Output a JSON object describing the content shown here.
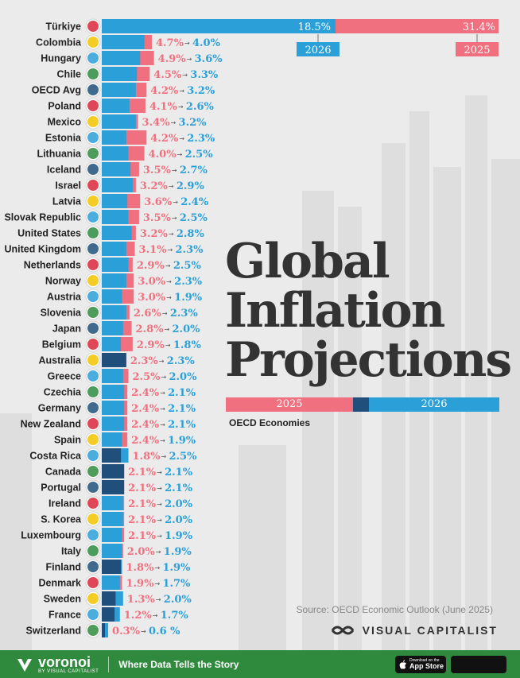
{
  "title_lines": [
    "Global",
    "Inflation",
    "Projections"
  ],
  "subtitle": "OECD Economies",
  "legend": {
    "y2025": "2025",
    "y2026": "2026"
  },
  "source": "Source: OECD Economic Outlook (June 2025)",
  "publisher": "VISUAL CAPITALIST",
  "footer": {
    "brand": "voronoi",
    "brand_sub": "BY VISUAL CAPITALIST",
    "tagline": "Where Data Tells the Story",
    "appstore_small": "Download on the",
    "appstore_big": "App Store"
  },
  "colors": {
    "y2025": "#f0707f",
    "y2026": "#2a9fd8",
    "overlap": "#1f4f7a"
  },
  "chart_data": {
    "type": "bar",
    "orientation": "horizontal",
    "series": [
      {
        "name": "2025",
        "values": [
          31.4,
          4.7,
          4.9,
          4.5,
          4.2,
          4.1,
          3.4,
          4.2,
          4.0,
          3.5,
          3.2,
          3.6,
          3.5,
          3.2,
          3.1,
          2.9,
          3.0,
          3.0,
          2.6,
          2.8,
          2.9,
          2.3,
          2.5,
          2.4,
          2.4,
          2.4,
          2.4,
          1.8,
          2.1,
          2.1,
          2.1,
          2.1,
          2.1,
          2.0,
          1.8,
          1.9,
          1.3,
          1.2,
          0.3
        ]
      },
      {
        "name": "2026",
        "values": [
          18.5,
          4.0,
          3.6,
          3.3,
          3.2,
          2.6,
          3.2,
          2.3,
          2.5,
          2.7,
          2.9,
          2.4,
          2.5,
          2.8,
          2.3,
          2.5,
          2.3,
          1.9,
          2.3,
          2.0,
          1.8,
          2.3,
          2.0,
          2.1,
          2.1,
          2.1,
          1.9,
          2.5,
          2.1,
          2.1,
          2.0,
          2.0,
          1.9,
          1.9,
          1.9,
          1.7,
          2.0,
          1.7,
          0.6
        ]
      }
    ],
    "categories": [
      "Türkiye",
      "Colombia",
      "Hungary",
      "Chile",
      "OECD Avg",
      "Poland",
      "Mexico",
      "Estonia",
      "Lithuania",
      "Iceland",
      "Israel",
      "Latvia",
      "Slovak Republic",
      "United States",
      "United Kingdom",
      "Netherlands",
      "Norway",
      "Austria",
      "Slovenia",
      "Japan",
      "Belgium",
      "Australia",
      "Greece",
      "Czechia",
      "Germany",
      "New Zealand",
      "Spain",
      "Costa Rica",
      "Canada",
      "Portugal",
      "Ireland",
      "S. Korea",
      "Luxembourg",
      "Italy",
      "Finland",
      "Denmark",
      "Sweden",
      "France",
      "Switzerland"
    ],
    "labels_2025": [
      "31.4%",
      "4.7%",
      "4.9%",
      "4.5%",
      "4.2%",
      "4.1%",
      "3.4%",
      "4.2%",
      "4.0%",
      "3.5%",
      "3.2%",
      "3.6%",
      "3.5%",
      "3.2%",
      "3.1%",
      "2.9%",
      "3.0%",
      "3.0%",
      "2.6%",
      "2.8%",
      "2.9%",
      "2.3%",
      "2.5%",
      "2.4%",
      "2.4%",
      "2.4%",
      "2.4%",
      "1.8%",
      "2.1%",
      "2.1%",
      "2.1%",
      "2.1%",
      "2.1%",
      "2.0%",
      "1.8%",
      "1.9%",
      "1.3%",
      "1.2%",
      "0.3%"
    ],
    "labels_2026": [
      "18.5%",
      "4.0%",
      "3.6%",
      "3.3%",
      "3.2%",
      "2.6%",
      "3.2%",
      "2.3%",
      "2.5%",
      "2.7%",
      "2.9%",
      "2.4%",
      "2.5%",
      "2.8%",
      "2.3%",
      "2.5%",
      "2.3%",
      "1.9%",
      "2.3%",
      "2.0%",
      "1.8%",
      "2.3%",
      "2.0%",
      "2.1%",
      "2.1%",
      "2.1%",
      "1.9%",
      "2.5%",
      "2.1%",
      "2.1%",
      "2.0%",
      "2.0%",
      "1.9%",
      "1.9%",
      "1.9%",
      "1.7%",
      "2.0%",
      "1.7%",
      "0.6 %"
    ],
    "callouts": {
      "y2026": "2026",
      "y2025": "2025"
    }
  }
}
